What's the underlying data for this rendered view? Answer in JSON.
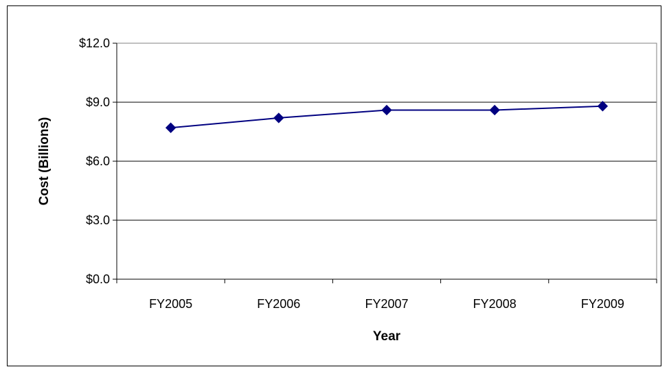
{
  "chart_data": {
    "type": "line",
    "title": "",
    "xlabel": "Year",
    "ylabel": "Cost (Billions)",
    "categories": [
      "FY2005",
      "FY2006",
      "FY2007",
      "FY2008",
      "FY2009"
    ],
    "series": [
      {
        "values": [
          7.7,
          8.2,
          8.6,
          8.6,
          8.8
        ],
        "color": "#000080",
        "marker": "diamond"
      }
    ],
    "ylim": [
      0,
      12
    ],
    "yticks": [
      0,
      3,
      6,
      9,
      12
    ],
    "ytick_labels": [
      "$0.0",
      "$3.0",
      "$6.0",
      "$9.0",
      "$12.0"
    ],
    "grid": "horizontal",
    "legend": "none"
  }
}
